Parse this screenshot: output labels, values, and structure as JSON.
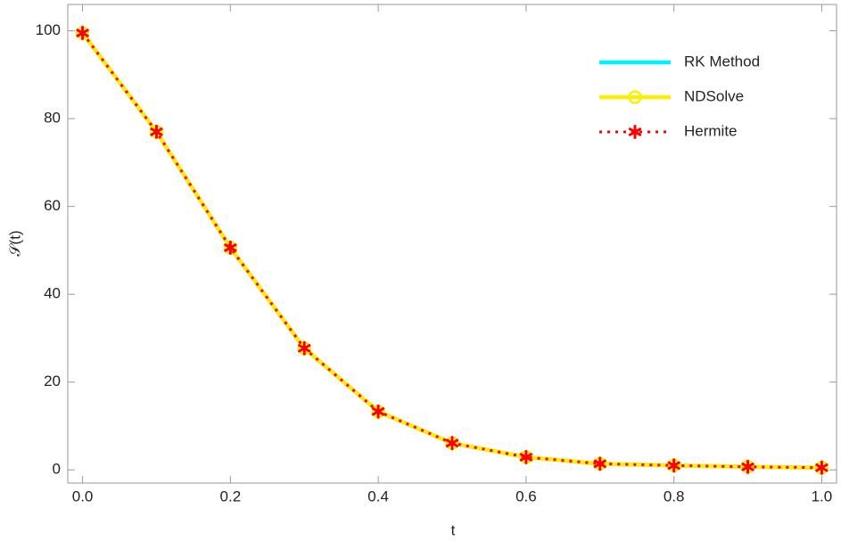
{
  "chart_data": {
    "type": "line",
    "xlabel": "t",
    "ylabel": "𝒮(t)",
    "x": [
      0,
      0.1,
      0.2,
      0.3,
      0.4,
      0.5,
      0.6,
      0.7,
      0.8,
      0.9,
      1.0
    ],
    "series": [
      {
        "name": "RK Method",
        "color": "#00f0ff",
        "dash": "solid",
        "marker": "none",
        "values": [
          99.5,
          77,
          50.6,
          27.7,
          13.3,
          6.1,
          2.9,
          1.4,
          1.0,
          0.7,
          0.5
        ]
      },
      {
        "name": "NDSolve",
        "color": "#ffee00",
        "dash": "solid",
        "marker": "circle",
        "values": [
          99.5,
          77,
          50.6,
          27.7,
          13.3,
          6.1,
          2.9,
          1.4,
          1.0,
          0.7,
          0.5
        ]
      },
      {
        "name": "Hermite",
        "color": "#ff0000",
        "dash": "dotted",
        "marker": "star",
        "values": [
          99.5,
          77,
          50.6,
          27.7,
          13.3,
          6.1,
          2.9,
          1.4,
          1.0,
          0.7,
          0.5
        ]
      }
    ],
    "xlim": [
      -0.02,
      1.02
    ],
    "ylim": [
      -3,
      106
    ],
    "xticks": [
      {
        "value": 0,
        "label": "0.0"
      },
      0.2,
      0.4,
      0.6,
      0.8,
      {
        "value": 1,
        "label": "1.0"
      }
    ],
    "yticks": [
      0,
      20,
      40,
      60,
      80,
      100
    ],
    "grid": false,
    "legend": "upper right"
  }
}
